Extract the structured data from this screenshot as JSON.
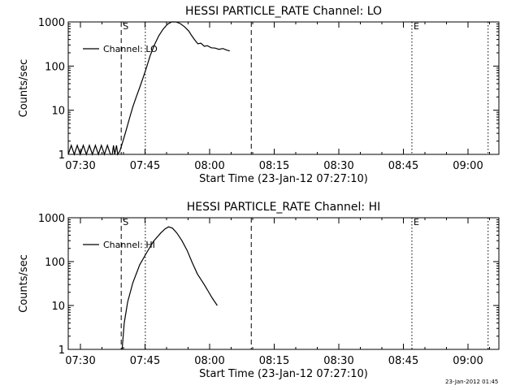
{
  "chart_data": [
    {
      "type": "line",
      "title": "HESSI PARTICLE_RATE Channel: LO",
      "xlabel": "Start Time (23-Jan-12 07:27:10)",
      "ylabel": "Counts/sec",
      "x_unit": "minutes after 07:27:10",
      "xlim": [
        0,
        100
      ],
      "ylim": [
        1,
        1000
      ],
      "y_scale": "log",
      "grid": false,
      "legend": "top-left",
      "x_ticks": [
        {
          "label": "07:30",
          "minute": 2.83
        },
        {
          "label": "07:45",
          "minute": 17.83
        },
        {
          "label": "08:00",
          "minute": 32.83
        },
        {
          "label": "08:15",
          "minute": 47.83
        },
        {
          "label": "08:30",
          "minute": 62.83
        },
        {
          "label": "08:45",
          "minute": 77.83
        },
        {
          "label": "09:00",
          "minute": 92.83
        }
      ],
      "y_ticks": [
        {
          "label": "1",
          "value": 1
        },
        {
          "label": "10",
          "value": 10
        },
        {
          "label": "100",
          "value": 100
        },
        {
          "label": "1000",
          "value": 1000
        }
      ],
      "markers": [
        {
          "label": "S",
          "minute": 12.3,
          "style": "dashed"
        },
        {
          "label": "",
          "minute": 17.9,
          "style": "dotted"
        },
        {
          "label": "",
          "minute": 42.5,
          "style": "dashed"
        },
        {
          "label": "E",
          "minute": 79.8,
          "style": "dotted"
        },
        {
          "label": "",
          "minute": 97.5,
          "style": "dotted"
        }
      ],
      "series": [
        {
          "name": "Channel: LO",
          "points": [
            [
              0,
              1
            ],
            [
              0.7,
              1.6
            ],
            [
              1.4,
              1
            ],
            [
              2.1,
              1.6
            ],
            [
              2.8,
              1
            ],
            [
              3.5,
              1.6
            ],
            [
              4.2,
              1
            ],
            [
              4.9,
              1.6
            ],
            [
              5.6,
              1
            ],
            [
              6.3,
              1.6
            ],
            [
              7,
              1
            ],
            [
              7.7,
              1.6
            ],
            [
              8.4,
              1
            ],
            [
              9.1,
              1.6
            ],
            [
              9.8,
              1
            ],
            [
              10.2,
              1
            ],
            [
              10.5,
              1.6
            ],
            [
              10.8,
              1
            ],
            [
              11.2,
              1.6
            ],
            [
              11.5,
              1
            ],
            [
              12,
              1.2
            ],
            [
              12.4,
              1.6
            ],
            [
              13,
              2.5
            ],
            [
              13.6,
              4
            ],
            [
              14.3,
              7
            ],
            [
              15,
              12
            ],
            [
              15.8,
              20
            ],
            [
              16.6,
              33
            ],
            [
              17.4,
              55
            ],
            [
              18.2,
              95
            ],
            [
              19,
              170
            ],
            [
              20,
              300
            ],
            [
              21,
              480
            ],
            [
              22,
              680
            ],
            [
              23,
              880
            ],
            [
              24,
              1000
            ],
            [
              25,
              1000
            ],
            [
              26,
              920
            ],
            [
              27,
              780
            ],
            [
              28,
              620
            ],
            [
              28.6,
              500
            ],
            [
              29.3,
              400
            ],
            [
              30.1,
              320
            ],
            [
              30.8,
              330
            ],
            [
              31.6,
              280
            ],
            [
              32.3,
              290
            ],
            [
              33.2,
              260
            ],
            [
              34.1,
              255
            ],
            [
              35,
              240
            ],
            [
              35.9,
              250
            ],
            [
              36.8,
              230
            ],
            [
              37.5,
              220
            ]
          ]
        }
      ]
    },
    {
      "type": "line",
      "title": "HESSI PARTICLE_RATE Channel: HI",
      "xlabel": "Start Time (23-Jan-12 07:27:10)",
      "ylabel": "Counts/sec",
      "x_unit": "minutes after 07:27:10",
      "xlim": [
        0,
        100
      ],
      "ylim": [
        1,
        1000
      ],
      "y_scale": "log",
      "grid": false,
      "legend": "top-left",
      "x_ticks": [
        {
          "label": "07:30",
          "minute": 2.83
        },
        {
          "label": "07:45",
          "minute": 17.83
        },
        {
          "label": "08:00",
          "minute": 32.83
        },
        {
          "label": "08:15",
          "minute": 47.83
        },
        {
          "label": "08:30",
          "minute": 62.83
        },
        {
          "label": "08:45",
          "minute": 77.83
        },
        {
          "label": "09:00",
          "minute": 92.83
        }
      ],
      "y_ticks": [
        {
          "label": "1",
          "value": 1
        },
        {
          "label": "10",
          "value": 10
        },
        {
          "label": "100",
          "value": 100
        },
        {
          "label": "1000",
          "value": 1000
        }
      ],
      "markers": [
        {
          "label": "S",
          "minute": 12.3,
          "style": "dashed"
        },
        {
          "label": "",
          "minute": 17.9,
          "style": "dotted"
        },
        {
          "label": "",
          "minute": 42.5,
          "style": "dashed"
        },
        {
          "label": "E",
          "minute": 79.8,
          "style": "dotted"
        },
        {
          "label": "",
          "minute": 97.5,
          "style": "dotted"
        }
      ],
      "series": [
        {
          "name": "Channel: HI",
          "points": [
            [
              12.5,
              1
            ],
            [
              13,
              4
            ],
            [
              13.8,
              12
            ],
            [
              15,
              33
            ],
            [
              16.6,
              85
            ],
            [
              18.2,
              160
            ],
            [
              19.8,
              290
            ],
            [
              21.5,
              450
            ],
            [
              22.5,
              560
            ],
            [
              23.3,
              620
            ],
            [
              24.2,
              580
            ],
            [
              25.2,
              450
            ],
            [
              26.4,
              300
            ],
            [
              27.6,
              180
            ],
            [
              28.8,
              95
            ],
            [
              30,
              52
            ],
            [
              31.4,
              32
            ],
            [
              32.4,
              22
            ],
            [
              33.4,
              15
            ],
            [
              34.6,
              10
            ]
          ]
        }
      ]
    }
  ],
  "footer": {
    "timestamp": "23-Jan-2012 01:45"
  }
}
